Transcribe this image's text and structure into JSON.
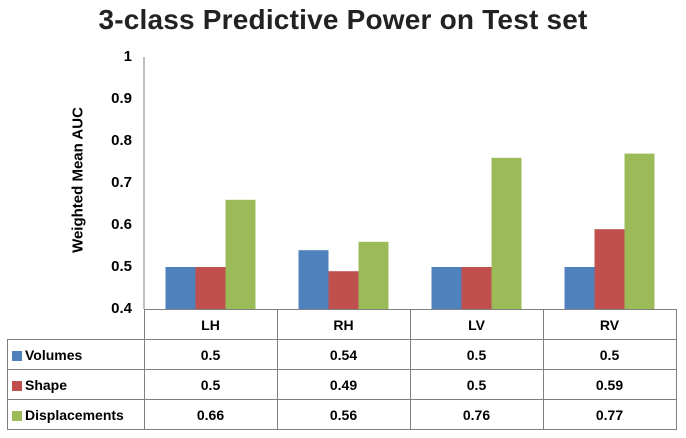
{
  "chart_data": {
    "type": "bar",
    "title": "3-class Predictive Power on Test set",
    "ylabel": "Weighted Mean AUC",
    "xlabel": "",
    "ylim": [
      0.4,
      1
    ],
    "yticks": [
      "0.4",
      "0.5",
      "0.6",
      "0.7",
      "0.8",
      "0.9",
      "1"
    ],
    "categories": [
      "LH",
      "RH",
      "LV",
      "RV"
    ],
    "series": [
      {
        "name": "Volumes",
        "color": "#4f81bd",
        "values": [
          0.5,
          0.54,
          0.5,
          0.5
        ],
        "labels": [
          "0.5",
          "0.54",
          "0.5",
          "0.5"
        ]
      },
      {
        "name": "Shape",
        "color": "#c0504d",
        "values": [
          0.5,
          0.49,
          0.5,
          0.59
        ],
        "labels": [
          "0.5",
          "0.49",
          "0.5",
          "0.59"
        ]
      },
      {
        "name": "Displacements",
        "color": "#9bbb59",
        "values": [
          0.66,
          0.56,
          0.76,
          0.77
        ],
        "labels": [
          "0.66",
          "0.56",
          "0.76",
          "0.77"
        ]
      }
    ],
    "grid": false,
    "legend": "data table below plot"
  }
}
